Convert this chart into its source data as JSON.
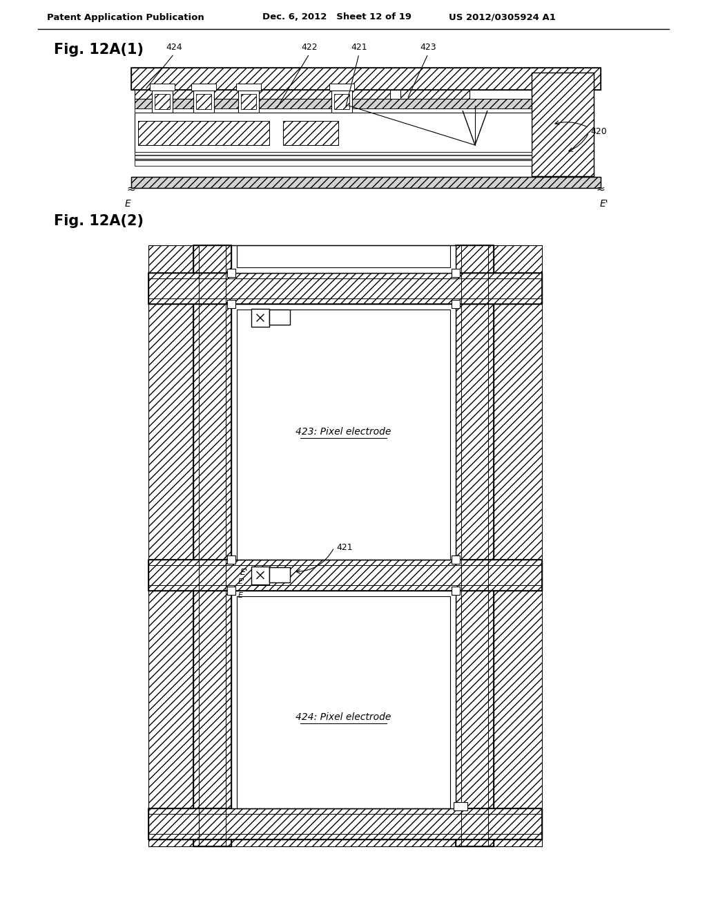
{
  "header_left": "Patent Application Publication",
  "header_mid": "Dec. 6, 2012   Sheet 12 of 19",
  "header_right": "US 2012/0305924 A1",
  "fig1_label": "Fig. 12A(1)",
  "fig2_label": "Fig. 12A(2)",
  "label_424": "424",
  "label_422": "422",
  "label_421": "421",
  "label_423": "423",
  "label_420": "420",
  "label_E": "E",
  "label_Eprime": "E'",
  "label_423_pixel": "423: Pixel electrode",
  "label_424_pixel": "424: Pixel electrode",
  "label_421_fig2": "421",
  "background": "#ffffff",
  "line_color": "#000000"
}
